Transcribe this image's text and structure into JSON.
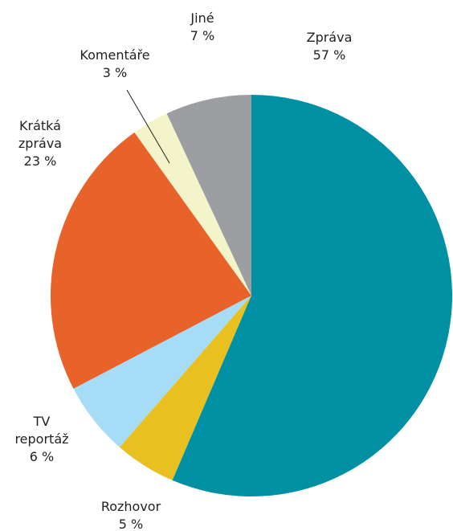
{
  "chart_data": {
    "type": "pie",
    "categories": [
      "Zpráva",
      "Rozhovor",
      "TV reportáž",
      "Krátká zpráva",
      "Komentáře",
      "Jiné"
    ],
    "values": [
      57,
      5,
      6,
      23,
      3,
      7
    ],
    "value_labels": [
      "57 %",
      "5 %",
      "6 %",
      "23 %",
      "3 %",
      "7 %"
    ],
    "colors": [
      "#0090a4",
      "#e8c020",
      "#a6dcf5",
      "#e8632a",
      "#f3f4c9",
      "#9c9ea2"
    ]
  }
}
